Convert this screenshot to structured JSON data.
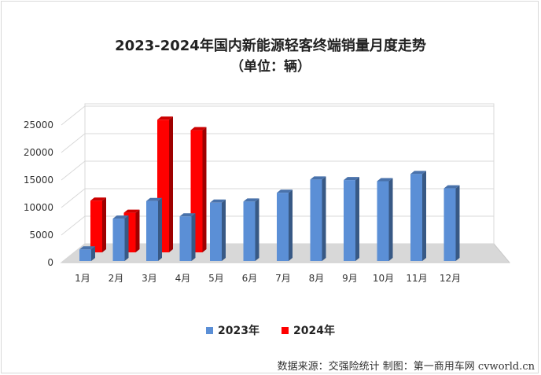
{
  "chart_data": {
    "type": "bar",
    "title": "2023-2024年国内新能源轻客终端销量月度走势",
    "subtitle": "（单位：辆）",
    "categories": [
      "1月",
      "2月",
      "3月",
      "4月",
      "5月",
      "6月",
      "7月",
      "8月",
      "9月",
      "10月",
      "11月",
      "12月"
    ],
    "series": [
      {
        "name": "2023年",
        "color": "#5b8fd6",
        "values": [
          2100,
          7700,
          10900,
          8100,
          10600,
          10800,
          12400,
          14800,
          14700,
          14500,
          15800,
          13200
        ]
      },
      {
        "name": "2024年",
        "color": "#ff0000",
        "values": [
          9400,
          7200,
          24100,
          22200,
          null,
          null,
          null,
          null,
          null,
          null,
          null,
          null
        ]
      }
    ],
    "y_ticks": [
      "0",
      "5000",
      "10000",
      "15000",
      "20000",
      "25000"
    ],
    "ylim": [
      0,
      25000
    ],
    "grid": true,
    "legend_position": "bottom"
  },
  "footer": {
    "source": "数据来源：交强险统计  制图：第一商用车网 cvworld.cn"
  }
}
